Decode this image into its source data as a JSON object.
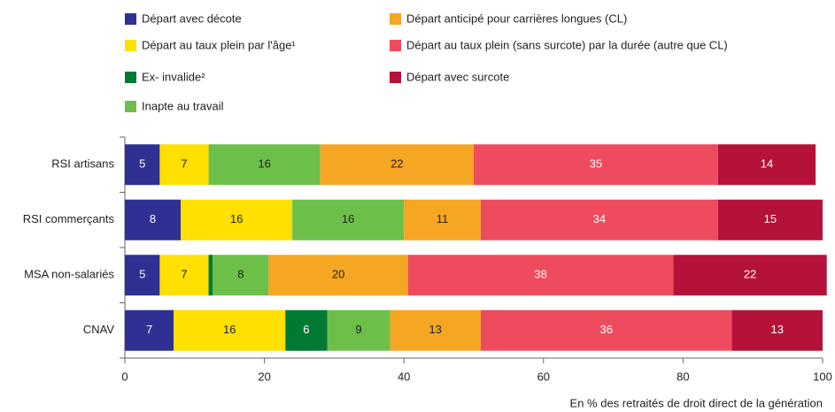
{
  "chart_data": {
    "type": "stacked_bar_horizontal",
    "categories": [
      "RSI artisans",
      "RSI commerçants",
      "MSA non-salariés",
      "CNAV"
    ],
    "series": [
      {
        "name": "Départ avec décote",
        "color": "#2e3192",
        "values": [
          5,
          8,
          5,
          7
        ]
      },
      {
        "name": "Départ au taux plein par l'âge¹",
        "color": "#ffe000",
        "values": [
          7,
          16,
          7,
          16
        ]
      },
      {
        "name": "Ex- invalide²",
        "color": "#007a33",
        "values": [
          0,
          0,
          0.6,
          6
        ]
      },
      {
        "name": "Inapte au travail",
        "color": "#6cc04a",
        "values": [
          16,
          16,
          8,
          9
        ]
      },
      {
        "name": "Départ anticipé pour carrières longues (CL)",
        "color": "#f5a623",
        "values": [
          22,
          11,
          20,
          13
        ]
      },
      {
        "name": "Départ au taux plein (sans surcote) par la durée (autre que CL)",
        "color": "#ef4b5f",
        "values": [
          35,
          34,
          38,
          36
        ]
      },
      {
        "name": "Départ avec surcote",
        "color": "#b5123a",
        "values": [
          14,
          15,
          22,
          13
        ]
      }
    ],
    "xlim": [
      0,
      100
    ],
    "xticks": [
      0,
      20,
      40,
      60,
      80,
      100
    ],
    "xlabel": "En % des retraités de droit direct de la génération"
  }
}
